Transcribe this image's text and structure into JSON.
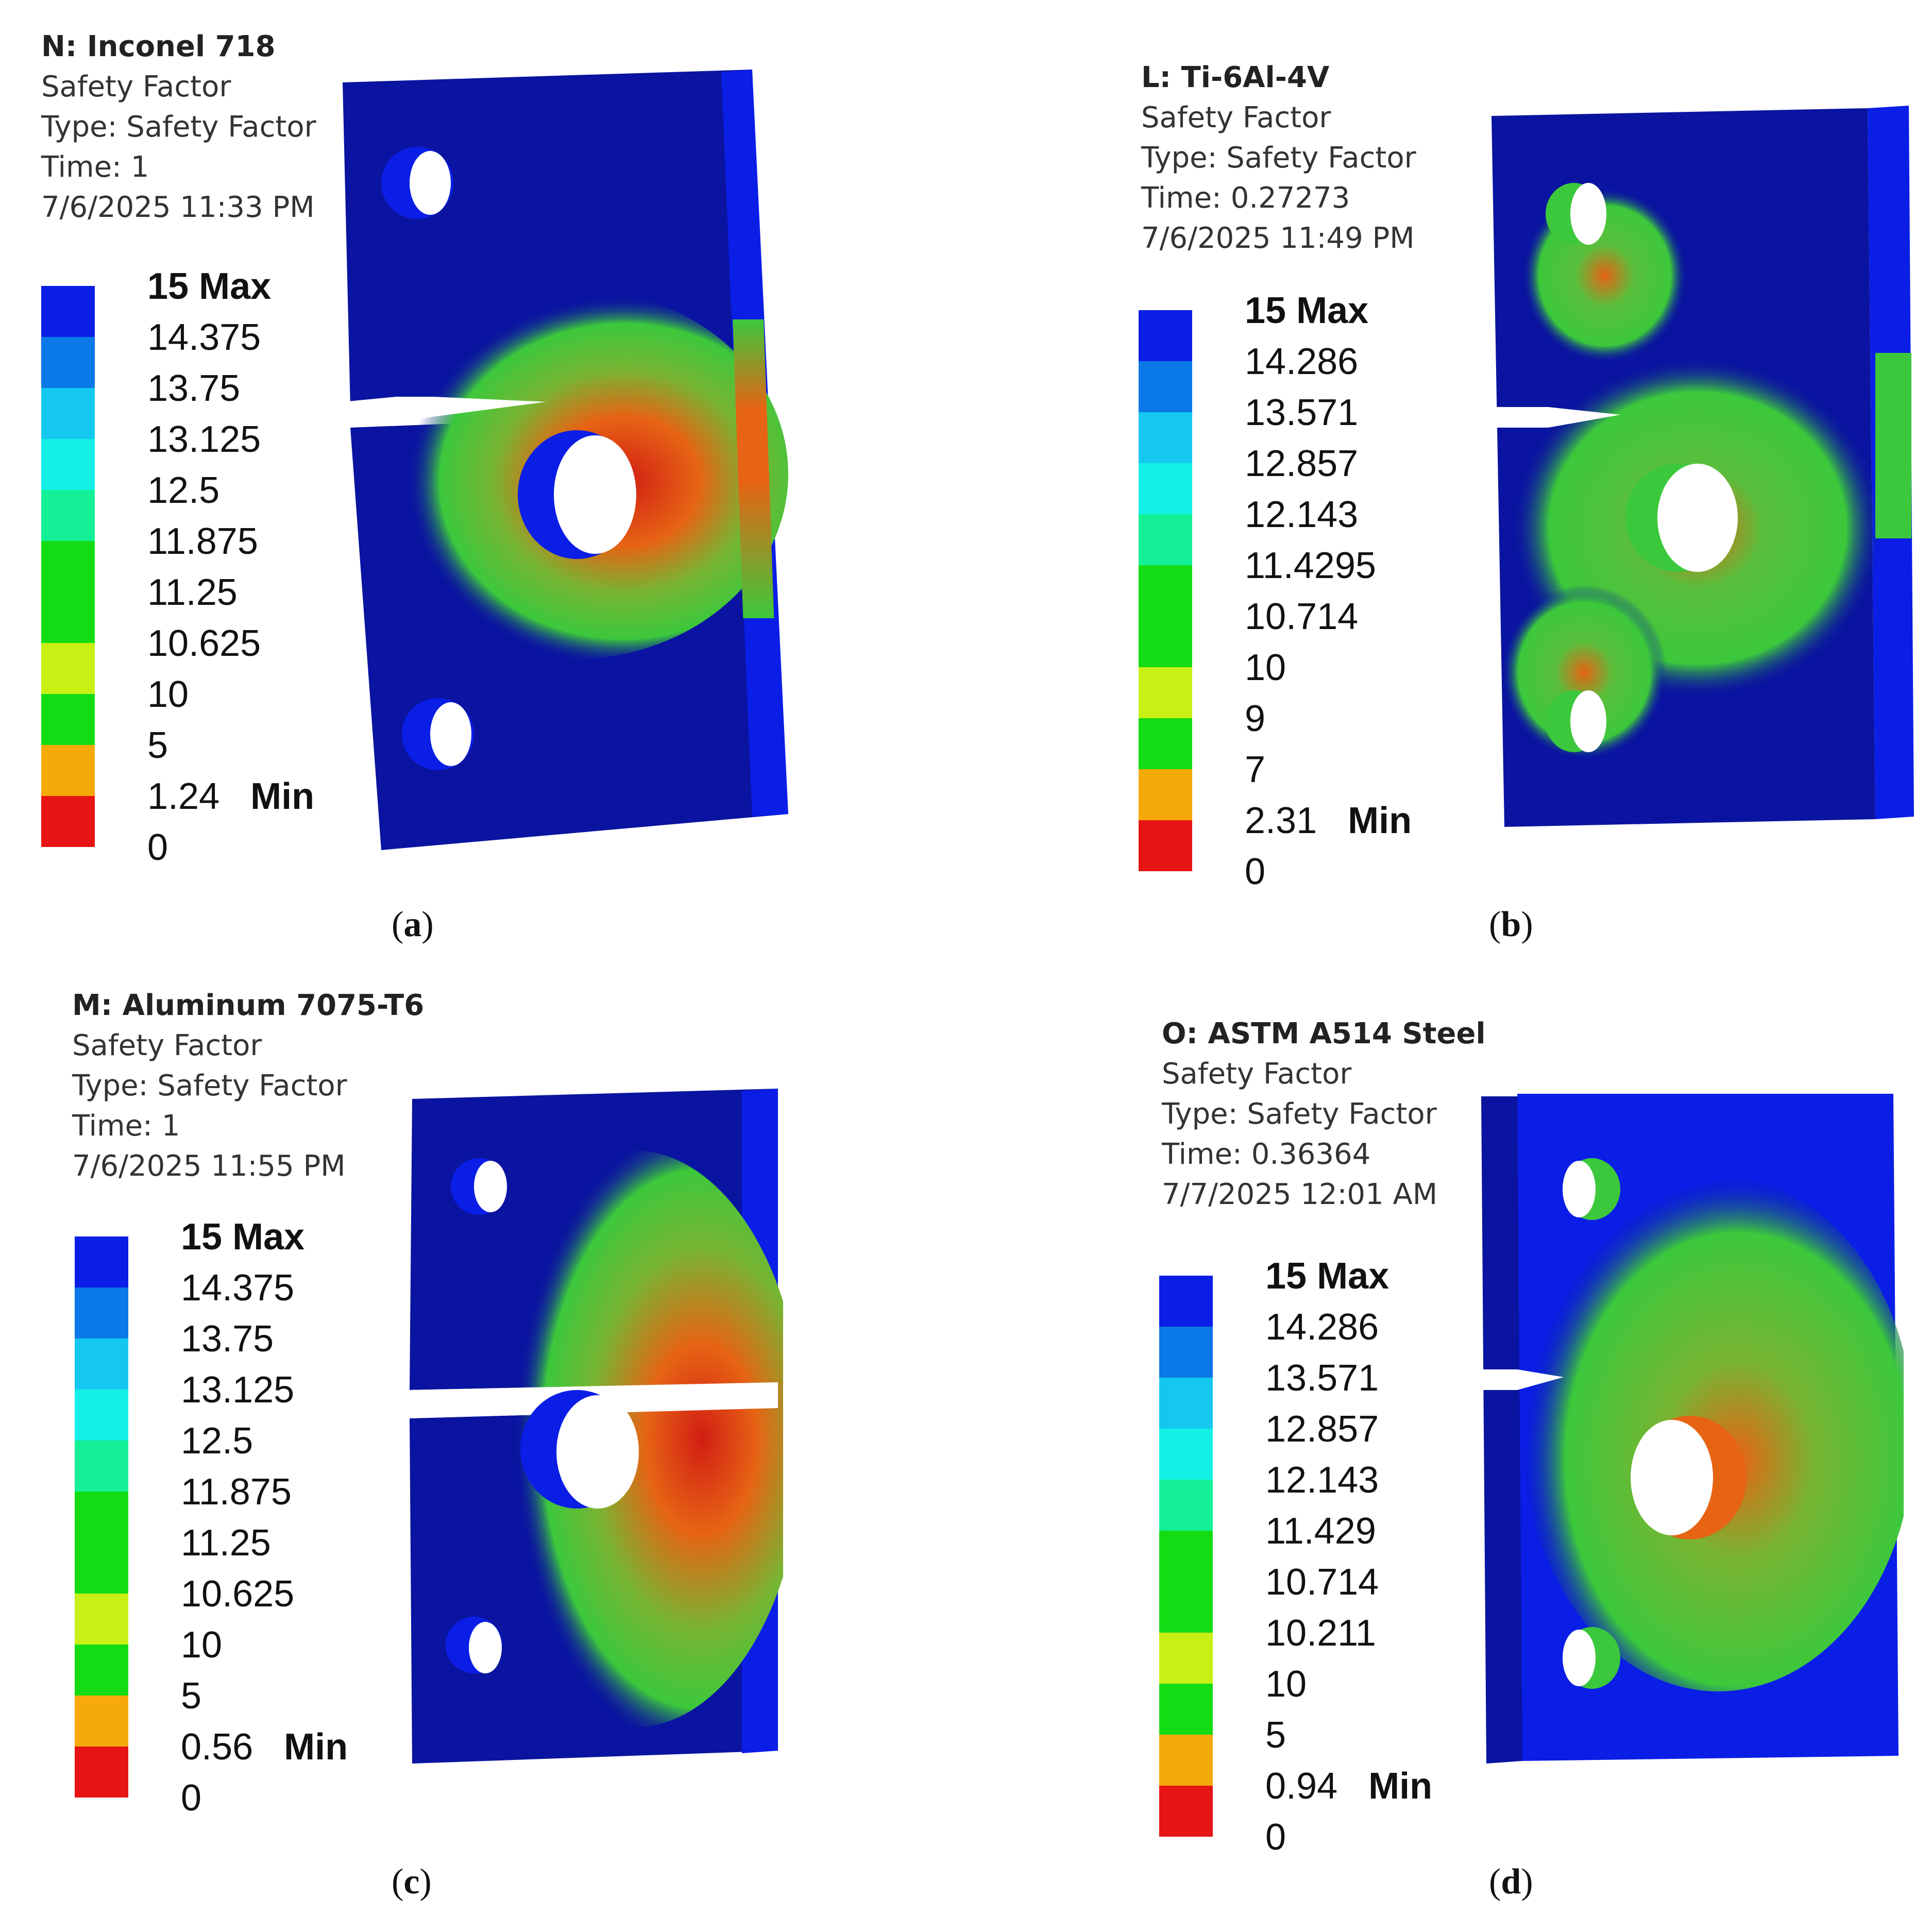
{
  "panels": [
    {
      "id": "a",
      "material": "N: Inconel 718",
      "result": "Safety Factor",
      "type": "Type: Safety Factor",
      "time": "Time: 1",
      "date": "7/6/2025 11:33 PM",
      "legend": [
        "15 Max",
        "14.375",
        "13.75",
        "13.125",
        "12.5",
        "11.875",
        "11.25",
        "10.625",
        "10",
        "5",
        "1.24",
        "0"
      ],
      "min_label": "Min",
      "caption": "a"
    },
    {
      "id": "b",
      "material": "L: Ti-6Al-4V",
      "result": "Safety Factor",
      "type": "Type: Safety Factor",
      "time": "Time: 0.27273",
      "date": "7/6/2025 11:49 PM",
      "legend": [
        "15 Max",
        "14.286",
        "13.571",
        "12.857",
        "12.143",
        "11.4295",
        "10.714",
        "10",
        "9",
        "7",
        "2.31",
        "0"
      ],
      "min_label": "Min",
      "caption": "b"
    },
    {
      "id": "c",
      "material": "M: Aluminum 7075-T6",
      "result": "Safety Factor",
      "type": "Type: Safety Factor",
      "time": "Time: 1",
      "date": "7/6/2025 11:55 PM",
      "legend": [
        "15 Max",
        "14.375",
        "13.75",
        "13.125",
        "12.5",
        "11.875",
        "11.25",
        "10.625",
        "10",
        "5",
        "0.56",
        "0"
      ],
      "min_label": "Min",
      "caption": "c"
    },
    {
      "id": "d",
      "material": "O: ASTM A514 Steel",
      "result": "Safety Factor",
      "type": "Type: Safety Factor",
      "time": "Time: 0.36364",
      "date": "7/7/2025 12:01 AM",
      "legend": [
        "15 Max",
        "14.286",
        "13.571",
        "12.857",
        "12.143",
        "11.429",
        "10.714",
        "10.211",
        "10",
        "5",
        "0.94",
        "0"
      ],
      "min_label": "Min",
      "caption": "d"
    }
  ],
  "legend_colors": [
    "#0a1ee6",
    "#0a78e6",
    "#14c8f0",
    "#14f0e6",
    "#14f096",
    "#14dc14",
    "#14dc14",
    "#c8f014",
    "#14dc14",
    "#f5aa0a",
    "#e61414"
  ],
  "model_colors": {
    "body": "#0a14a0",
    "edge": "#0a1ee6",
    "green": "#3cc83c",
    "yellow": "#b4d23c",
    "orange": "#e66414",
    "red": "#d21e14",
    "hole": "#ffffff"
  }
}
